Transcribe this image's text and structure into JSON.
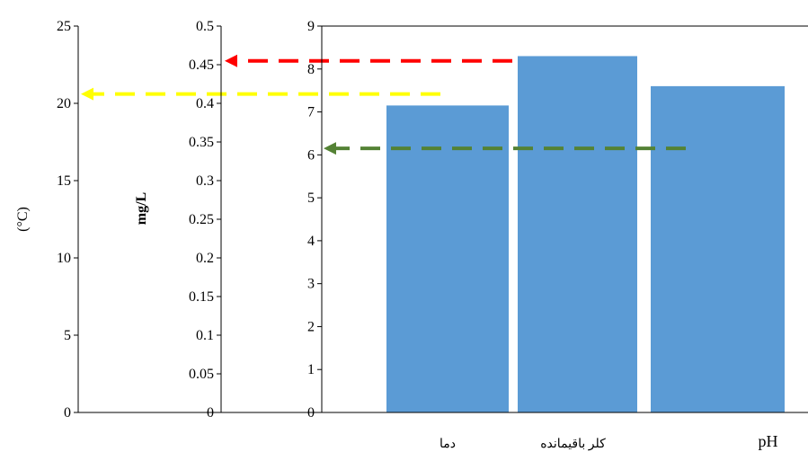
{
  "chart_data": {
    "type": "bar",
    "categories": [
      "دما",
      "کلر باقیمانده",
      "pH"
    ],
    "values_primary_axis": [
      7.15,
      8.3,
      7.6
    ],
    "axes": [
      {
        "id": "temperature",
        "label": "(°C)",
        "range": [
          0,
          25
        ],
        "ticks": [
          0,
          5,
          10,
          15,
          20,
          25
        ],
        "tick_labels": [
          "0",
          "5",
          "10",
          "15",
          "20",
          "25"
        ]
      },
      {
        "id": "chlorine",
        "label": "mg/L",
        "range": [
          0,
          0.5
        ],
        "ticks": [
          0,
          0.05,
          0.1,
          0.15,
          0.2,
          0.25,
          0.3,
          0.35,
          0.4,
          0.45,
          0.5
        ],
        "tick_labels": [
          "0",
          "0.05",
          "0.1",
          "0.15",
          "0.2",
          "0.25",
          "0.3",
          "0.35",
          "0.4",
          "0.45",
          "0.5"
        ]
      },
      {
        "id": "ph",
        "label": "",
        "range": [
          0,
          9
        ],
        "ticks": [
          0,
          1,
          2,
          3,
          4,
          5,
          6,
          7,
          8,
          9
        ],
        "tick_labels": [
          "0",
          "1",
          "2",
          "3",
          "4",
          "5",
          "6",
          "7",
          "8",
          "9"
        ]
      }
    ],
    "arrows": [
      {
        "name": "temperature-arrow",
        "color": "#ffff00",
        "value": 20.6,
        "axis": "temperature"
      },
      {
        "name": "chlorine-arrow",
        "color": "#ff0000",
        "value": 0.455,
        "axis": "chlorine"
      },
      {
        "name": "ph-arrow",
        "color": "#548235",
        "value": 6.15,
        "axis": "ph"
      }
    ],
    "colors": {
      "bar": "#5b9bd5",
      "axis": "#000000"
    },
    "grid": false,
    "legend": "none"
  }
}
